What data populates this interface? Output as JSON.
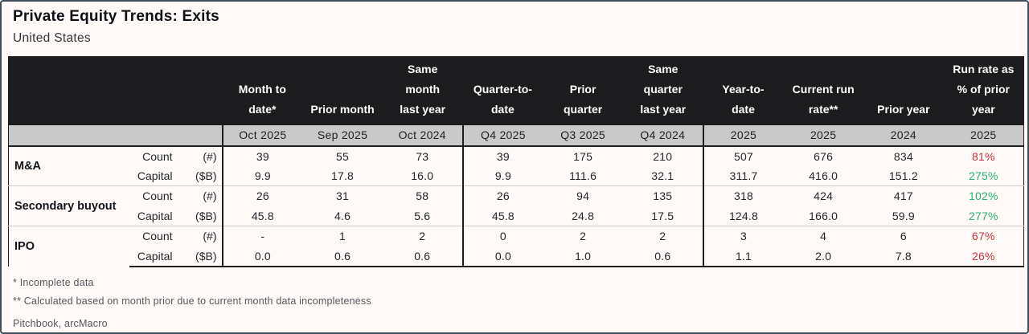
{
  "colors": {
    "header_background": "#1c1c1e",
    "subheader_background": "#c9c9c9",
    "page_background": "#fffaf7",
    "negative_pct": "#c9313b",
    "positive_pct": "#25b274"
  },
  "chart_data": {
    "type": "table",
    "title": "Private Equity Trends: Exits",
    "subtitle": "United States",
    "columns": [
      {
        "label": "Month to\ndate*",
        "period": "Oct 2025"
      },
      {
        "label": "Prior month",
        "period": "Sep 2025"
      },
      {
        "label": "Same\nmonth\nlast year",
        "period": "Oct 2024"
      },
      {
        "label": "Quarter-to-\ndate",
        "period": "Q4 2025"
      },
      {
        "label": "Prior\nquarter",
        "period": "Q3 2025"
      },
      {
        "label": "Same\nquarter\nlast year",
        "period": "Q4 2024"
      },
      {
        "label": "Year-to-\ndate",
        "period": "2025"
      },
      {
        "label": "Current run\nrate**",
        "period": "2025"
      },
      {
        "label": "Prior year",
        "period": "2024"
      },
      {
        "label": "Run rate as\n% of prior\nyear",
        "period": "2025"
      }
    ],
    "row_groups": [
      {
        "name": "M&A",
        "rows": [
          {
            "metric": "Count",
            "unit": "(#)",
            "values": [
              "39",
              "55",
              "73",
              "39",
              "175",
              "210",
              "507",
              "676",
              "834"
            ],
            "run_rate": "81%",
            "trend": "down"
          },
          {
            "metric": "Capital",
            "unit": "($B)",
            "values": [
              "9.9",
              "17.8",
              "16.0",
              "9.9",
              "111.6",
              "32.1",
              "311.7",
              "416.0",
              "151.2"
            ],
            "run_rate": "275%",
            "trend": "up"
          }
        ]
      },
      {
        "name": "Secondary buyout",
        "rows": [
          {
            "metric": "Count",
            "unit": "(#)",
            "values": [
              "26",
              "31",
              "58",
              "26",
              "94",
              "135",
              "318",
              "424",
              "417"
            ],
            "run_rate": "102%",
            "trend": "up"
          },
          {
            "metric": "Capital",
            "unit": "($B)",
            "values": [
              "45.8",
              "4.6",
              "5.6",
              "45.8",
              "24.8",
              "17.5",
              "124.8",
              "166.0",
              "59.9"
            ],
            "run_rate": "277%",
            "trend": "up"
          }
        ]
      },
      {
        "name": "IPO",
        "rows": [
          {
            "metric": "Count",
            "unit": "(#)",
            "values": [
              "-",
              "1",
              "2",
              "0",
              "2",
              "2",
              "3",
              "4",
              "6"
            ],
            "run_rate": "67%",
            "trend": "down"
          },
          {
            "metric": "Capital",
            "unit": "($B)",
            "values": [
              "0.0",
              "0.6",
              "0.6",
              "0.0",
              "1.0",
              "0.6",
              "1.1",
              "2.0",
              "7.8"
            ],
            "run_rate": "26%",
            "trend": "down"
          }
        ]
      }
    ],
    "footnotes": [
      "* Incomplete data",
      "** Calculated based on month prior due to current month data incompleteness"
    ],
    "source": "Pitchbook, arcMacro"
  }
}
